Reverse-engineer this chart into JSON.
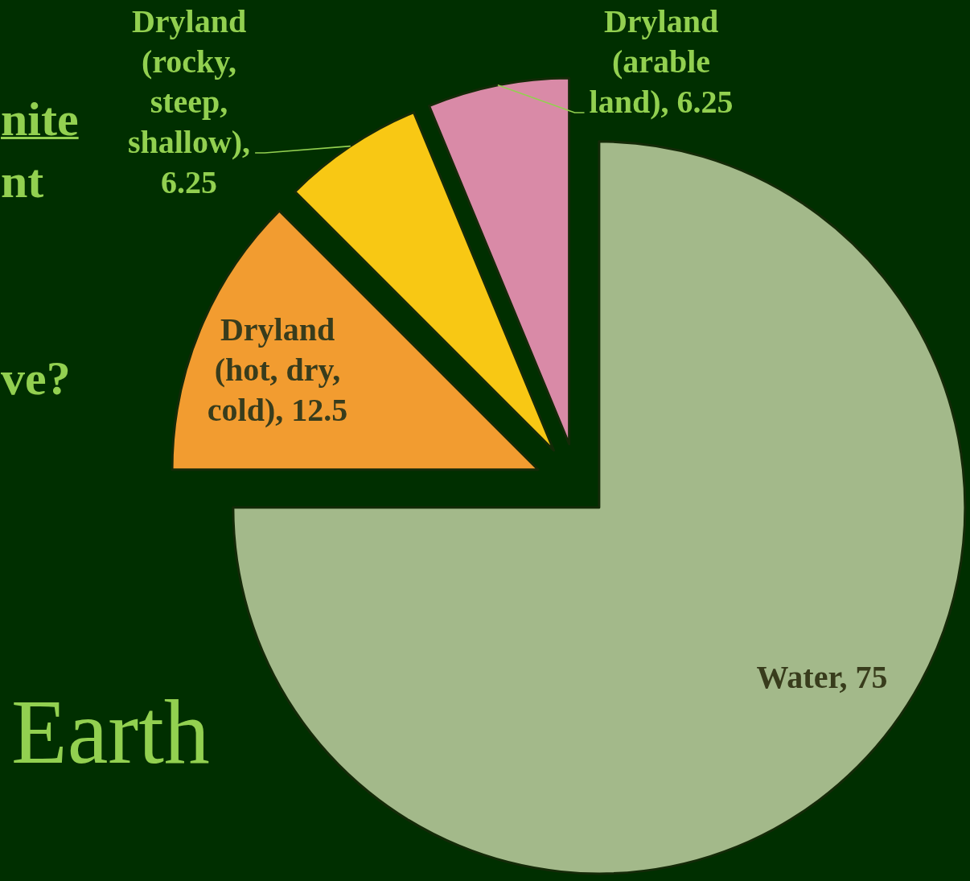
{
  "chart_data": {
    "type": "pie",
    "categories": [
      "Water, 75",
      "Dryland (hot, dry, cold), 12.5",
      "Dryland (rocky, steep, shallow), 6.25",
      "Dryland (arable land), 6.25"
    ],
    "values": [
      75,
      12.5,
      6.25,
      6.25
    ],
    "colors": [
      "#a3b98a",
      "#f29c30",
      "#f8c814",
      "#d98aa7"
    ],
    "annotations": [
      "nite",
      "nt",
      "ve?",
      "Earth"
    ]
  }
}
